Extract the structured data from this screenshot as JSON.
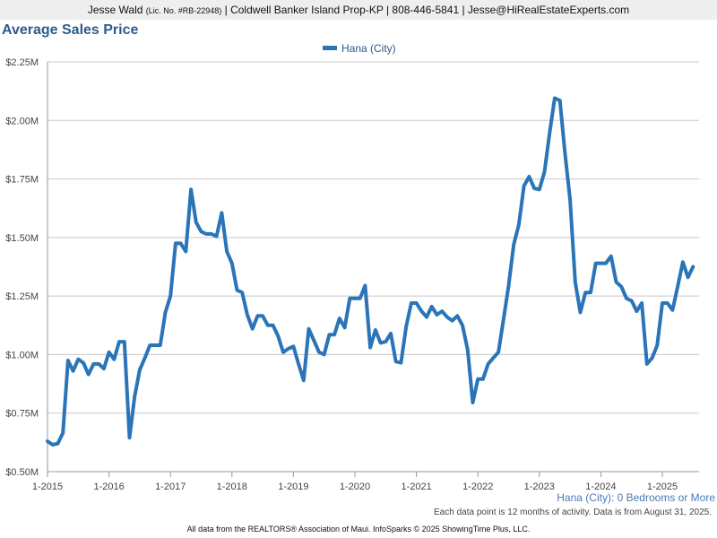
{
  "header": {
    "agent_name": "Jesse Wald",
    "license": "(Lic. No. #RB-22948)",
    "brokerage": "| Coldwell Banker Island Prop-KP | 808-446-5841 | Jesse@HiRealEstateExperts.com"
  },
  "chart_data": {
    "type": "line",
    "title": "Average Sales Price",
    "legend": {
      "position": "top-center"
    },
    "grid": true,
    "ylim": [
      0.5,
      2.25
    ],
    "yticks": [
      "$2.25M",
      "$2.00M",
      "$1.75M",
      "$1.50M",
      "$1.25M",
      "$1.00M",
      "$0.75M",
      "$0.50M"
    ],
    "xticks": [
      "1-2015",
      "1-2016",
      "1-2017",
      "1-2018",
      "1-2019",
      "1-2020",
      "1-2021",
      "1-2022",
      "1-2023",
      "1-2024",
      "1-2025"
    ],
    "series": [
      {
        "name": "Hana (City)",
        "color": "#2a74b8",
        "x_start": "1-2015",
        "x_step": "1 month",
        "values": [
          0.63,
          0.615,
          0.62,
          0.665,
          0.975,
          0.93,
          0.98,
          0.965,
          0.915,
          0.96,
          0.96,
          0.94,
          1.01,
          0.98,
          1.055,
          1.055,
          0.645,
          0.82,
          0.935,
          0.985,
          1.04,
          1.04,
          1.04,
          1.18,
          1.25,
          1.475,
          1.475,
          1.44,
          1.705,
          1.565,
          1.525,
          1.515,
          1.515,
          1.505,
          1.605,
          1.44,
          1.39,
          1.275,
          1.265,
          1.17,
          1.11,
          1.165,
          1.165,
          1.125,
          1.125,
          1.08,
          1.01,
          1.025,
          1.035,
          0.96,
          0.89,
          1.11,
          1.06,
          1.01,
          1.0,
          1.085,
          1.085,
          1.155,
          1.115,
          1.24,
          1.24,
          1.24,
          1.295,
          1.03,
          1.105,
          1.05,
          1.055,
          1.09,
          0.97,
          0.965,
          1.12,
          1.22,
          1.22,
          1.185,
          1.16,
          1.205,
          1.17,
          1.185,
          1.16,
          1.145,
          1.165,
          1.125,
          1.02,
          0.795,
          0.895,
          0.895,
          0.96,
          0.985,
          1.01,
          1.15,
          1.295,
          1.47,
          1.555,
          1.72,
          1.76,
          1.71,
          1.705,
          1.78,
          1.945,
          2.095,
          2.085,
          1.86,
          1.66,
          1.31,
          1.18,
          1.265,
          1.265,
          1.39,
          1.39,
          1.39,
          1.42,
          1.31,
          1.29,
          1.24,
          1.23,
          1.185,
          1.22,
          0.96,
          0.985,
          1.04,
          1.22,
          1.22,
          1.19,
          1.29,
          1.395,
          1.33,
          1.375
        ]
      }
    ]
  },
  "notes": {
    "filter": "Hana (City): 0 Bedrooms or More",
    "data_info": "Each data point is 12 months of activity. Data is from August 31, 2025.",
    "footer": "All data from the REALTORS® Association of Maui. InfoSparks © 2025 ShowingTime Plus, LLC."
  }
}
